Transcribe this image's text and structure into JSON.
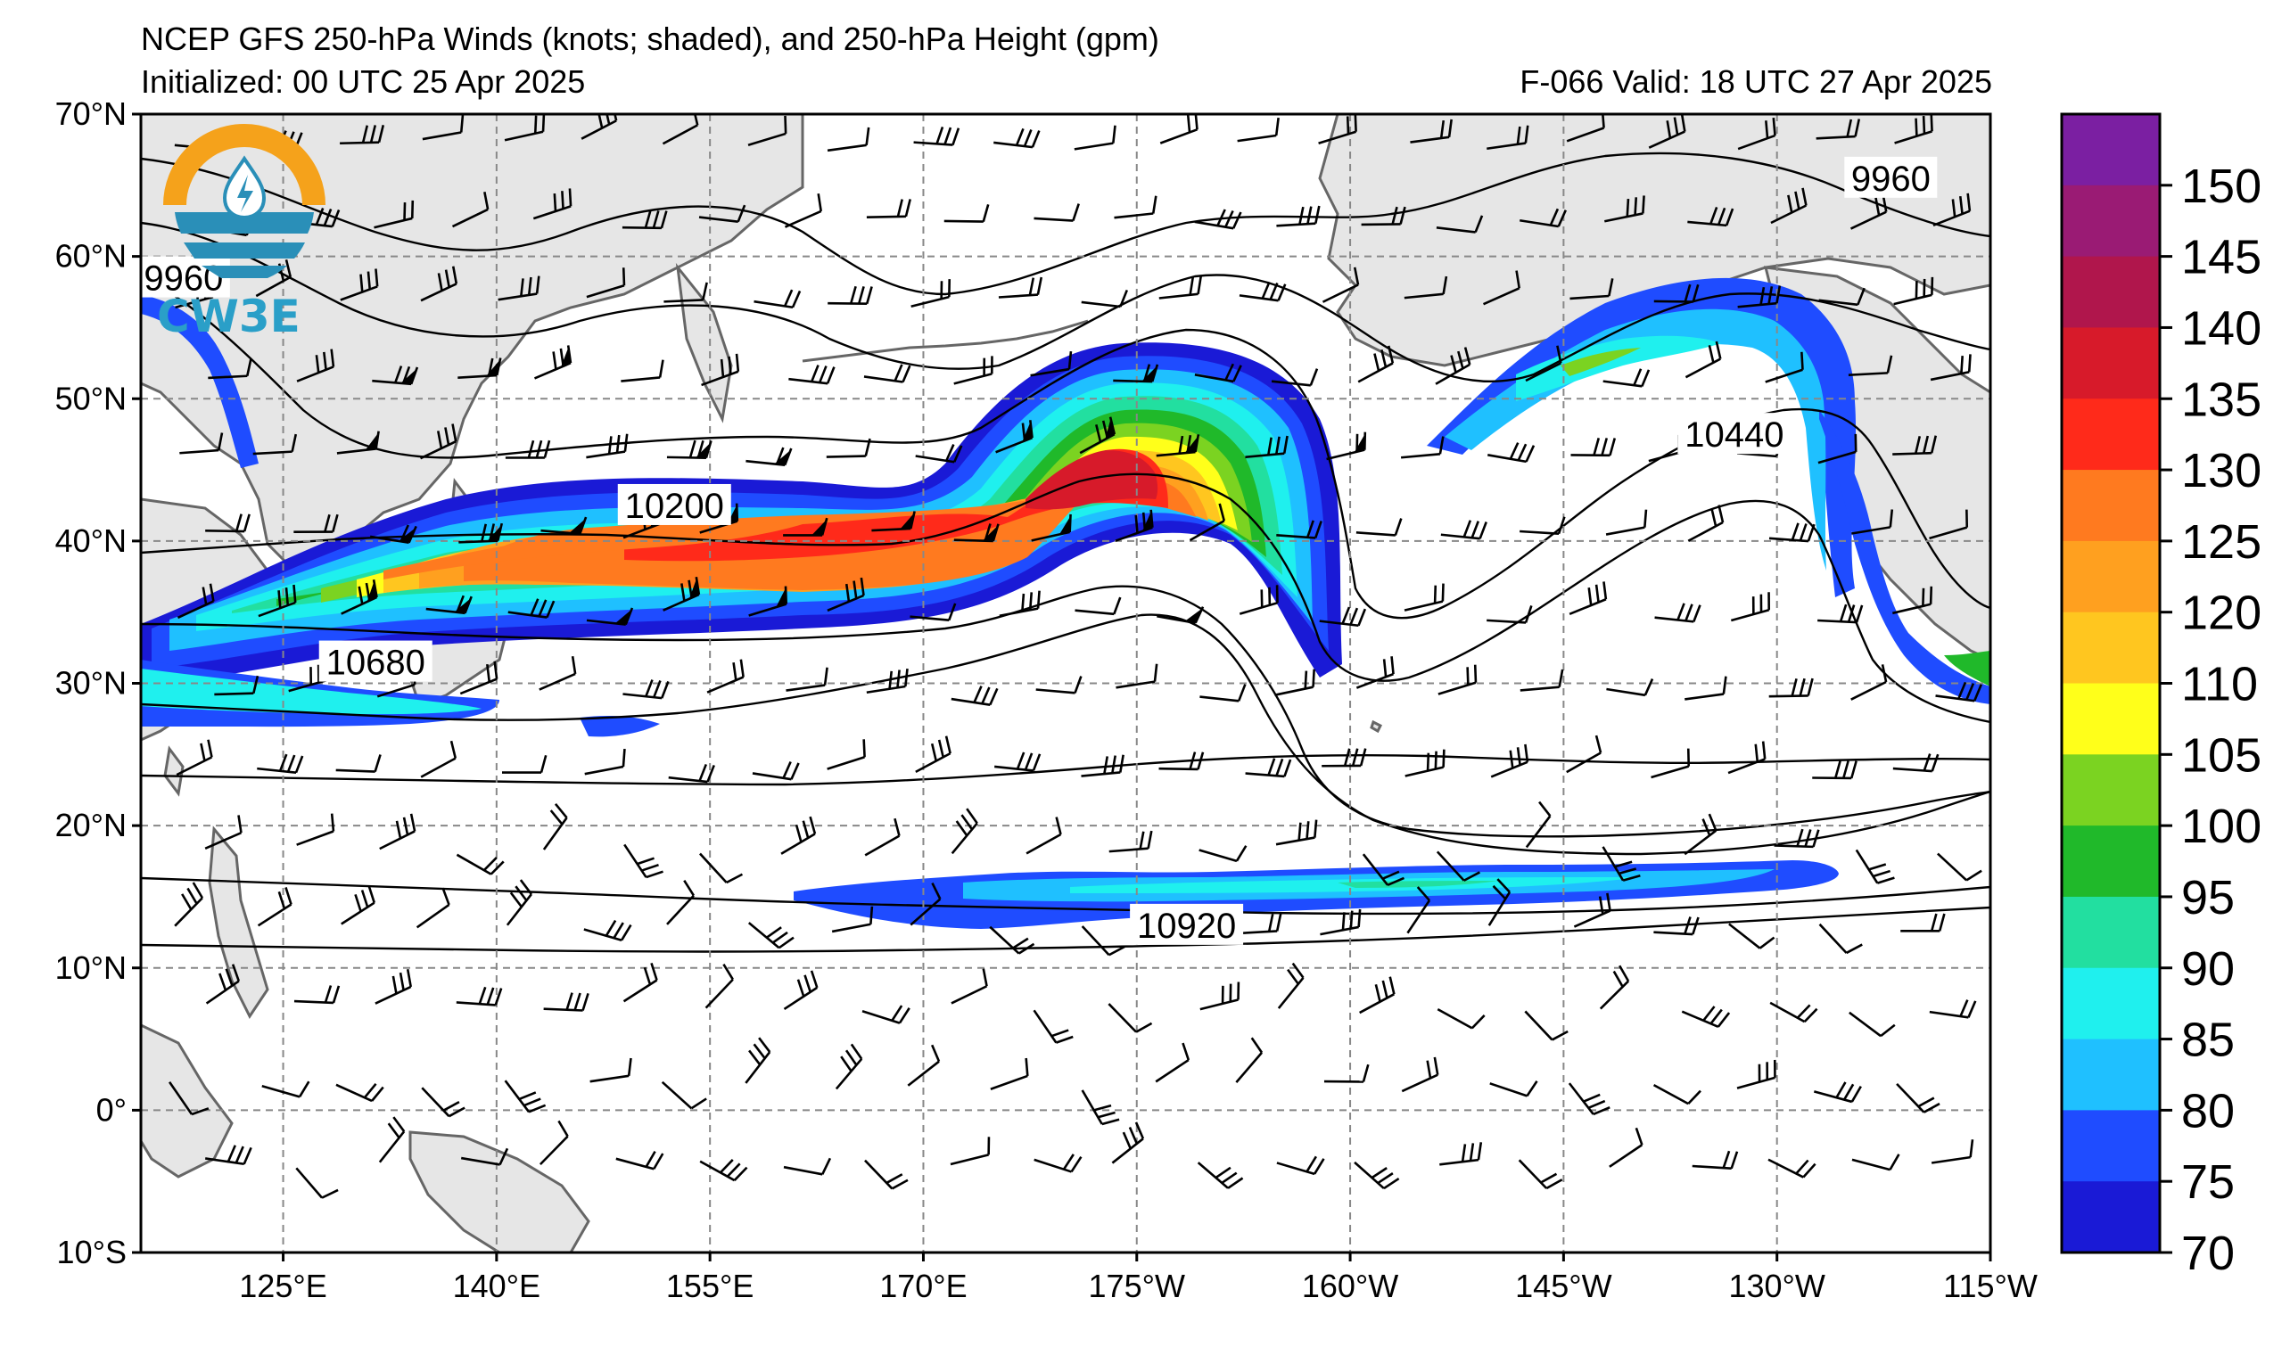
{
  "title": {
    "line1": "NCEP GFS 250-hPa Winds (knots; shaded), and 250-hPa Height (gpm)",
    "initialized": "Initialized: 00 UTC 25 Apr 2025",
    "valid": "F-066  Valid: 18 UTC 27 Apr 2025"
  },
  "logo": {
    "text": "CW3E",
    "colors": {
      "ring": "#f5a21b",
      "water": "#2a8fb8"
    }
  },
  "map": {
    "lat_ticks": [
      "70°N",
      "60°N",
      "50°N",
      "40°N",
      "30°N",
      "20°N",
      "10°N",
      "0°",
      "10°S"
    ],
    "lon_ticks": [
      "125°E",
      "140°E",
      "155°E",
      "170°E",
      "175°W",
      "160°W",
      "145°W",
      "130°W",
      "115°W"
    ],
    "extent": {
      "lon_min": 115,
      "lon_max": 245,
      "lat_min": -10,
      "lat_max": 70
    },
    "land_color": "#e6e6e6",
    "coast_color": "#666666",
    "grid_color": "#888888"
  },
  "height_contours": {
    "units": "gpm",
    "labels": [
      {
        "text": "9960",
        "lon": 118,
        "lat": 58.5
      },
      {
        "text": "9960",
        "lon": 238,
        "lat": 65.5
      },
      {
        "text": "10200",
        "lon": 152.5,
        "lat": 42.5
      },
      {
        "text": "10440",
        "lon": 227,
        "lat": 47.5
      },
      {
        "text": "10680",
        "lon": 131.5,
        "lat": 31.5
      },
      {
        "text": "10920",
        "lon": 188.5,
        "lat": 13
      }
    ]
  },
  "colorbar": {
    "units": "knots",
    "labels": [
      "150",
      "145",
      "140",
      "135",
      "130",
      "125",
      "120",
      "110",
      "105",
      "100",
      "95",
      "90",
      "85",
      "80",
      "75",
      "70"
    ],
    "colors": [
      "#7b1fa2",
      "#9a1b74",
      "#b0164c",
      "#d71a2a",
      "#ff2a1a",
      "#ff7a1f",
      "#ffa01f",
      "#ffc61f",
      "#ffff1a",
      "#7bd321",
      "#20b92a",
      "#22dfa0",
      "#1ff0ee",
      "#1fc0ff",
      "#1f4cff",
      "#1a1ad6"
    ]
  }
}
